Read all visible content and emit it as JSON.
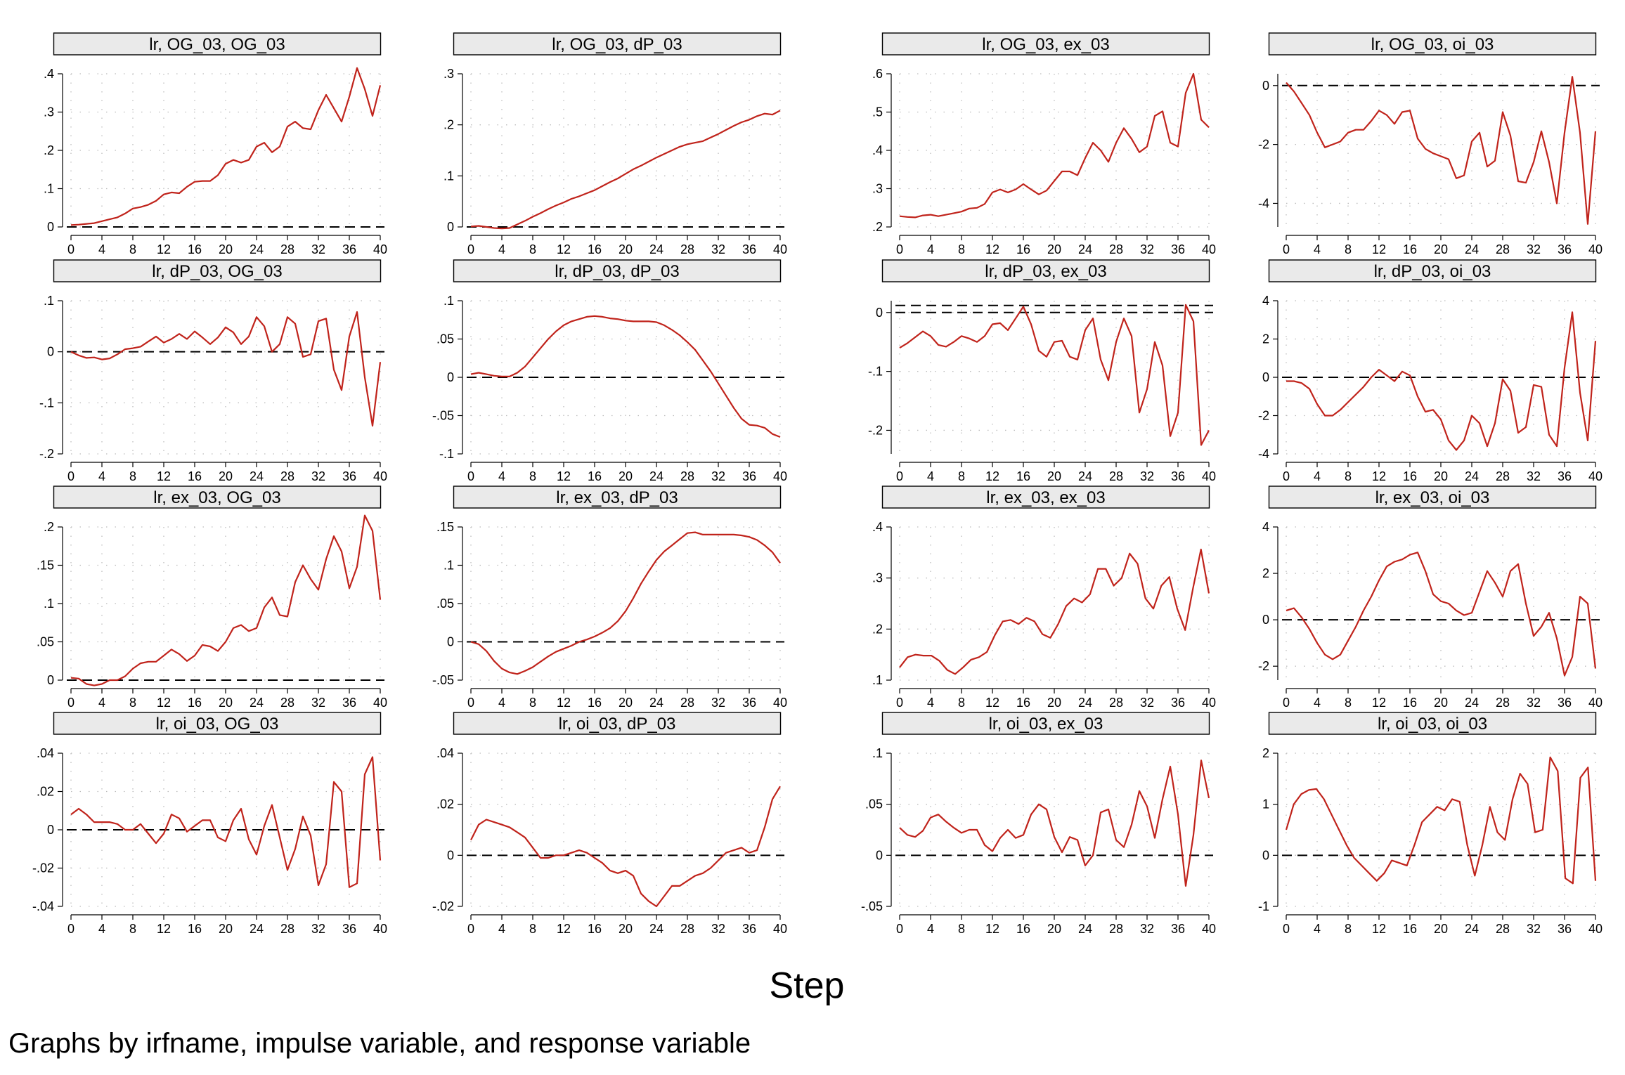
{
  "figure": {
    "xlabel": "Step",
    "note": "Graphs by irfname, impulse variable, and response variable",
    "line_color": "#c0231b",
    "reference_line_color": "#000000"
  },
  "chart_data": [
    {
      "title": "lr, OG_03, OG_03",
      "type": "line",
      "xlim": [
        0,
        40
      ],
      "ylim": [
        0,
        0.4
      ],
      "ytick_labels": [
        "0",
        ".1",
        ".2",
        ".3",
        ".4"
      ],
      "yticks": [
        0,
        0.1,
        0.2,
        0.3,
        0.4
      ],
      "xticks": [
        0,
        4,
        8,
        12,
        16,
        20,
        24,
        28,
        32,
        36,
        40
      ],
      "ref_lines": [
        0
      ],
      "values": [
        0.005,
        0.006,
        0.008,
        0.01,
        0.015,
        0.02,
        0.025,
        0.035,
        0.048,
        0.052,
        0.058,
        0.068,
        0.085,
        0.09,
        0.088,
        0.105,
        0.118,
        0.12,
        0.12,
        0.135,
        0.165,
        0.175,
        0.168,
        0.175,
        0.21,
        0.22,
        0.195,
        0.21,
        0.262,
        0.275,
        0.258,
        0.255,
        0.305,
        0.345,
        0.31,
        0.275,
        0.34,
        0.415,
        0.36,
        0.29,
        0.37
      ]
    },
    {
      "title": "lr, OG_03, dP_03",
      "type": "line",
      "xlim": [
        0,
        40
      ],
      "ylim": [
        0,
        0.3
      ],
      "ytick_labels": [
        "0",
        ".1",
        ".2",
        ".3"
      ],
      "yticks": [
        0,
        0.1,
        0.2,
        0.3
      ],
      "xticks": [
        0,
        4,
        8,
        12,
        16,
        20,
        24,
        28,
        32,
        36,
        40
      ],
      "ref_lines": [
        0
      ],
      "values": [
        0.001,
        0.002,
        0.0,
        -0.002,
        -0.003,
        -0.002,
        0.005,
        0.012,
        0.02,
        0.027,
        0.035,
        0.042,
        0.048,
        0.055,
        0.06,
        0.066,
        0.072,
        0.08,
        0.088,
        0.095,
        0.104,
        0.113,
        0.12,
        0.128,
        0.136,
        0.143,
        0.15,
        0.157,
        0.162,
        0.165,
        0.168,
        0.175,
        0.182,
        0.19,
        0.198,
        0.205,
        0.21,
        0.217,
        0.222,
        0.22,
        0.228
      ]
    },
    {
      "title": "lr, OG_03, ex_03",
      "type": "line",
      "xlim": [
        0,
        40
      ],
      "ylim": [
        0.2,
        0.6
      ],
      "ytick_labels": [
        ".2",
        ".3",
        ".4",
        ".5",
        ".6"
      ],
      "yticks": [
        0.2,
        0.3,
        0.4,
        0.5,
        0.6
      ],
      "xticks": [
        0,
        4,
        8,
        12,
        16,
        20,
        24,
        28,
        32,
        36,
        40
      ],
      "ref_lines": [],
      "values": [
        0.228,
        0.226,
        0.225,
        0.23,
        0.232,
        0.228,
        0.232,
        0.236,
        0.24,
        0.248,
        0.25,
        0.26,
        0.29,
        0.298,
        0.29,
        0.298,
        0.312,
        0.298,
        0.285,
        0.295,
        0.32,
        0.345,
        0.345,
        0.335,
        0.38,
        0.42,
        0.4,
        0.37,
        0.42,
        0.458,
        0.43,
        0.395,
        0.41,
        0.49,
        0.502,
        0.42,
        0.41,
        0.55,
        0.6,
        0.48,
        0.46
      ]
    },
    {
      "title": "lr, OG_03, oi_03",
      "type": "line",
      "xlim": [
        0,
        40
      ],
      "ylim": [
        -4.8,
        0.4
      ],
      "ytick_labels": [
        "-4",
        "-2",
        "0"
      ],
      "yticks": [
        -4,
        -2,
        0
      ],
      "xticks": [
        0,
        4,
        8,
        12,
        16,
        20,
        24,
        28,
        32,
        36,
        40
      ],
      "ref_lines": [
        0
      ],
      "values": [
        0.1,
        -0.2,
        -0.6,
        -1.0,
        -1.6,
        -2.1,
        -2.0,
        -1.9,
        -1.6,
        -1.5,
        -1.5,
        -1.2,
        -0.85,
        -1.0,
        -1.3,
        -0.9,
        -0.85,
        -1.8,
        -2.15,
        -2.3,
        -2.4,
        -2.5,
        -3.15,
        -3.05,
        -1.9,
        -1.6,
        -2.75,
        -2.55,
        -0.9,
        -1.7,
        -3.25,
        -3.3,
        -2.6,
        -1.55,
        -2.6,
        -4.0,
        -1.6,
        0.3,
        -1.6,
        -4.7,
        -1.55
      ]
    },
    {
      "title": "lr, dP_03, OG_03",
      "type": "line",
      "xlim": [
        0,
        40
      ],
      "ylim": [
        -0.2,
        0.1
      ],
      "ytick_labels": [
        "-.2",
        "-.1",
        "0",
        ".1"
      ],
      "yticks": [
        -0.2,
        -0.1,
        0,
        0.1
      ],
      "xticks": [
        0,
        4,
        8,
        12,
        16,
        20,
        24,
        28,
        32,
        36,
        40
      ],
      "ref_lines": [
        0
      ],
      "values": [
        0.0,
        -0.007,
        -0.012,
        -0.011,
        -0.015,
        -0.013,
        -0.005,
        0.005,
        0.007,
        0.01,
        0.02,
        0.03,
        0.018,
        0.025,
        0.035,
        0.025,
        0.04,
        0.028,
        0.015,
        0.028,
        0.048,
        0.038,
        0.015,
        0.03,
        0.068,
        0.05,
        0.0,
        0.015,
        0.068,
        0.055,
        -0.01,
        -0.005,
        0.06,
        0.065,
        -0.035,
        -0.075,
        0.03,
        0.078,
        -0.05,
        -0.145,
        -0.02
      ]
    },
    {
      "title": "lr, dP_03, dP_03",
      "type": "line",
      "xlim": [
        0,
        40
      ],
      "ylim": [
        -0.1,
        0.1
      ],
      "ytick_labels": [
        "-.1",
        "-.05",
        "0",
        ".05",
        ".1"
      ],
      "yticks": [
        -0.1,
        -0.05,
        0,
        0.05,
        0.1
      ],
      "xticks": [
        0,
        4,
        8,
        12,
        16,
        20,
        24,
        28,
        32,
        36,
        40
      ],
      "ref_lines": [
        0
      ],
      "values": [
        0.004,
        0.006,
        0.004,
        0.002,
        0.001,
        0.001,
        0.006,
        0.014,
        0.026,
        0.038,
        0.05,
        0.06,
        0.068,
        0.073,
        0.076,
        0.079,
        0.08,
        0.079,
        0.077,
        0.076,
        0.074,
        0.073,
        0.073,
        0.073,
        0.072,
        0.068,
        0.062,
        0.055,
        0.046,
        0.036,
        0.022,
        0.008,
        -0.008,
        -0.024,
        -0.04,
        -0.054,
        -0.062,
        -0.063,
        -0.066,
        -0.074,
        -0.078
      ]
    },
    {
      "title": "lr, dP_03, ex_03",
      "type": "line",
      "xlim": [
        0,
        40
      ],
      "ylim": [
        -0.24,
        0.02
      ],
      "ytick_labels": [
        "-.2",
        "-.1",
        "0"
      ],
      "yticks": [
        -0.2,
        -0.1,
        0
      ],
      "xticks": [
        0,
        4,
        8,
        12,
        16,
        20,
        24,
        28,
        32,
        36,
        40
      ],
      "ref_lines": [
        0,
        0.012
      ],
      "values": [
        -0.06,
        -0.052,
        -0.042,
        -0.032,
        -0.04,
        -0.055,
        -0.058,
        -0.05,
        -0.04,
        -0.044,
        -0.05,
        -0.04,
        -0.02,
        -0.018,
        -0.03,
        -0.01,
        0.01,
        -0.02,
        -0.065,
        -0.075,
        -0.05,
        -0.048,
        -0.075,
        -0.08,
        -0.03,
        -0.01,
        -0.08,
        -0.115,
        -0.05,
        -0.01,
        -0.04,
        -0.17,
        -0.13,
        -0.05,
        -0.09,
        -0.21,
        -0.17,
        0.013,
        -0.015,
        -0.225,
        -0.2
      ]
    },
    {
      "title": "lr, dP_03, oi_03",
      "type": "line",
      "xlim": [
        0,
        40
      ],
      "ylim": [
        -4,
        4
      ],
      "ytick_labels": [
        "-4",
        "-2",
        "0",
        "2",
        "4"
      ],
      "yticks": [
        -4,
        -2,
        0,
        2,
        4
      ],
      "xticks": [
        0,
        4,
        8,
        12,
        16,
        20,
        24,
        28,
        32,
        36,
        40
      ],
      "ref_lines": [
        0
      ],
      "values": [
        -0.2,
        -0.2,
        -0.3,
        -0.6,
        -1.4,
        -2.0,
        -2.0,
        -1.7,
        -1.3,
        -0.9,
        -0.5,
        0.0,
        0.4,
        0.1,
        -0.2,
        0.3,
        0.1,
        -1.0,
        -1.8,
        -1.7,
        -2.2,
        -3.3,
        -3.8,
        -3.3,
        -2.0,
        -2.4,
        -3.6,
        -2.4,
        -0.1,
        -0.7,
        -2.9,
        -2.6,
        -0.4,
        -0.5,
        -3.0,
        -3.6,
        0.5,
        3.4,
        -0.8,
        -3.3,
        1.9
      ]
    },
    {
      "title": "lr, ex_03, OG_03",
      "type": "line",
      "xlim": [
        0,
        40
      ],
      "ylim": [
        0,
        0.2
      ],
      "ytick_labels": [
        "0",
        ".05",
        ".1",
        ".15",
        ".2"
      ],
      "yticks": [
        0,
        0.05,
        0.1,
        0.15,
        0.2
      ],
      "xticks": [
        0,
        4,
        8,
        12,
        16,
        20,
        24,
        28,
        32,
        36,
        40
      ],
      "ref_lines": [
        0
      ],
      "values": [
        0.003,
        0.002,
        -0.005,
        -0.007,
        -0.005,
        0.0,
        0.0,
        0.005,
        0.015,
        0.022,
        0.024,
        0.024,
        0.032,
        0.04,
        0.034,
        0.025,
        0.032,
        0.046,
        0.044,
        0.038,
        0.05,
        0.068,
        0.072,
        0.064,
        0.068,
        0.095,
        0.108,
        0.085,
        0.083,
        0.128,
        0.15,
        0.132,
        0.118,
        0.158,
        0.188,
        0.168,
        0.12,
        0.148,
        0.215,
        0.195,
        0.105
      ]
    },
    {
      "title": "lr, ex_03, dP_03",
      "type": "line",
      "xlim": [
        0,
        40
      ],
      "ylim": [
        -0.05,
        0.15
      ],
      "ytick_labels": [
        "-.05",
        "0",
        ".05",
        ".1",
        ".15"
      ],
      "yticks": [
        -0.05,
        0,
        0.05,
        0.1,
        0.15
      ],
      "xticks": [
        0,
        4,
        8,
        12,
        16,
        20,
        24,
        28,
        32,
        36,
        40
      ],
      "ref_lines": [
        0
      ],
      "values": [
        0.0,
        -0.003,
        -0.012,
        -0.025,
        -0.035,
        -0.04,
        -0.042,
        -0.038,
        -0.033,
        -0.026,
        -0.019,
        -0.013,
        -0.009,
        -0.005,
        0.0,
        0.003,
        0.007,
        0.012,
        0.018,
        0.027,
        0.04,
        0.057,
        0.076,
        0.092,
        0.107,
        0.118,
        0.126,
        0.134,
        0.142,
        0.143,
        0.14,
        0.14,
        0.14,
        0.14,
        0.14,
        0.139,
        0.137,
        0.133,
        0.126,
        0.117,
        0.103
      ]
    },
    {
      "title": "lr, ex_03, ex_03",
      "type": "line",
      "xlim": [
        0,
        40
      ],
      "ylim": [
        0.1,
        0.4
      ],
      "ytick_labels": [
        ".1",
        ".2",
        ".3",
        ".4"
      ],
      "yticks": [
        0.1,
        0.2,
        0.3,
        0.4
      ],
      "xticks": [
        0,
        4,
        8,
        12,
        16,
        20,
        24,
        28,
        32,
        36,
        40
      ],
      "ref_lines": [],
      "values": [
        0.125,
        0.145,
        0.15,
        0.148,
        0.148,
        0.138,
        0.12,
        0.112,
        0.125,
        0.14,
        0.145,
        0.155,
        0.188,
        0.215,
        0.218,
        0.21,
        0.222,
        0.215,
        0.19,
        0.183,
        0.21,
        0.245,
        0.26,
        0.252,
        0.268,
        0.318,
        0.318,
        0.285,
        0.3,
        0.348,
        0.328,
        0.26,
        0.24,
        0.285,
        0.302,
        0.24,
        0.198,
        0.28,
        0.356,
        0.27
      ]
    },
    {
      "title": "lr, ex_03, oi_03",
      "type": "line",
      "xlim": [
        0,
        40
      ],
      "ylim": [
        -2.6,
        4
      ],
      "ytick_labels": [
        "-2",
        "0",
        "2",
        "4"
      ],
      "yticks": [
        -2,
        0,
        2,
        4
      ],
      "xticks": [
        0,
        4,
        8,
        12,
        16,
        20,
        24,
        28,
        32,
        36,
        40
      ],
      "ref_lines": [
        0
      ],
      "values": [
        0.4,
        0.5,
        0.1,
        -0.4,
        -1.0,
        -1.5,
        -1.7,
        -1.5,
        -0.9,
        -0.3,
        0.4,
        1.0,
        1.7,
        2.3,
        2.5,
        2.6,
        2.8,
        2.9,
        2.1,
        1.1,
        0.8,
        0.7,
        0.4,
        0.2,
        0.3,
        1.2,
        2.1,
        1.6,
        1.0,
        2.1,
        2.4,
        0.7,
        -0.7,
        -0.3,
        0.3,
        -0.8,
        -2.4,
        -1.6,
        1.0,
        0.7,
        -2.1
      ]
    },
    {
      "title": "lr, oi_03, OG_03",
      "type": "line",
      "xlim": [
        0,
        40
      ],
      "ylim": [
        -0.04,
        0.04
      ],
      "ytick_labels": [
        "-.04",
        "-.02",
        "0",
        ".02",
        ".04"
      ],
      "yticks": [
        -0.04,
        -0.02,
        0,
        0.02,
        0.04
      ],
      "xticks": [
        0,
        4,
        8,
        12,
        16,
        20,
        24,
        28,
        32,
        36,
        40
      ],
      "ref_lines": [
        0
      ],
      "values": [
        0.008,
        0.011,
        0.008,
        0.004,
        0.004,
        0.004,
        0.003,
        0.0,
        0.0,
        0.003,
        -0.002,
        -0.007,
        -0.002,
        0.008,
        0.006,
        -0.001,
        0.002,
        0.005,
        0.005,
        -0.004,
        -0.006,
        0.005,
        0.011,
        -0.005,
        -0.013,
        0.002,
        0.013,
        -0.004,
        -0.021,
        -0.01,
        0.007,
        -0.003,
        -0.029,
        -0.018,
        0.025,
        0.02,
        -0.03,
        -0.028,
        0.029,
        0.038,
        -0.016
      ]
    },
    {
      "title": "lr, oi_03, dP_03",
      "type": "line",
      "xlim": [
        0,
        40
      ],
      "ylim": [
        -0.02,
        0.04
      ],
      "ytick_labels": [
        "-.02",
        "0",
        ".02",
        ".04"
      ],
      "yticks": [
        -0.02,
        0,
        0.02,
        0.04
      ],
      "xticks": [
        0,
        4,
        8,
        12,
        16,
        20,
        24,
        28,
        32,
        36,
        40
      ],
      "ref_lines": [
        0
      ],
      "values": [
        0.006,
        0.012,
        0.014,
        0.013,
        0.012,
        0.011,
        0.009,
        0.007,
        0.003,
        -0.001,
        -0.001,
        0.0,
        0.0,
        0.001,
        0.002,
        0.001,
        -0.001,
        -0.003,
        -0.006,
        -0.007,
        -0.006,
        -0.008,
        -0.015,
        -0.018,
        -0.02,
        -0.016,
        -0.012,
        -0.012,
        -0.01,
        -0.008,
        -0.007,
        -0.005,
        -0.002,
        0.001,
        0.002,
        0.003,
        0.001,
        0.002,
        0.011,
        0.022,
        0.027
      ]
    },
    {
      "title": "lr, oi_03, ex_03",
      "type": "line",
      "xlim": [
        0,
        40
      ],
      "ylim": [
        -0.05,
        0.1
      ],
      "ytick_labels": [
        "-.05",
        "0",
        ".05",
        ".1"
      ],
      "yticks": [
        -0.05,
        0,
        0.05,
        0.1
      ],
      "xticks": [
        0,
        4,
        8,
        12,
        16,
        20,
        24,
        28,
        32,
        36,
        40
      ],
      "ref_lines": [
        0
      ],
      "values": [
        0.027,
        0.02,
        0.018,
        0.024,
        0.037,
        0.04,
        0.033,
        0.027,
        0.022,
        0.025,
        0.025,
        0.01,
        0.004,
        0.017,
        0.025,
        0.017,
        0.02,
        0.04,
        0.05,
        0.045,
        0.018,
        0.003,
        0.018,
        0.015,
        -0.01,
        0.0,
        0.042,
        0.045,
        0.015,
        0.008,
        0.03,
        0.063,
        0.048,
        0.017,
        0.055,
        0.087,
        0.04,
        -0.03,
        0.02,
        0.093,
        0.056
      ]
    },
    {
      "title": "lr, oi_03, oi_03",
      "type": "line",
      "xlim": [
        0,
        40
      ],
      "ylim": [
        -1,
        2
      ],
      "ytick_labels": [
        "-1",
        "0",
        "1",
        "2"
      ],
      "yticks": [
        -1,
        0,
        1,
        2
      ],
      "xticks": [
        0,
        4,
        8,
        12,
        16,
        20,
        24,
        28,
        32,
        36,
        40
      ],
      "ref_lines": [
        0
      ],
      "values": [
        0.5,
        1.0,
        1.2,
        1.28,
        1.3,
        1.1,
        0.8,
        0.5,
        0.2,
        -0.05,
        -0.2,
        -0.35,
        -0.5,
        -0.35,
        -0.1,
        -0.15,
        -0.2,
        0.2,
        0.65,
        0.8,
        0.95,
        0.88,
        1.1,
        1.05,
        0.2,
        -0.4,
        0.2,
        0.95,
        0.45,
        0.3,
        1.1,
        1.6,
        1.4,
        0.45,
        0.5,
        1.92,
        1.65,
        -0.45,
        -0.55,
        1.52,
        1.72,
        -0.5
      ]
    }
  ]
}
